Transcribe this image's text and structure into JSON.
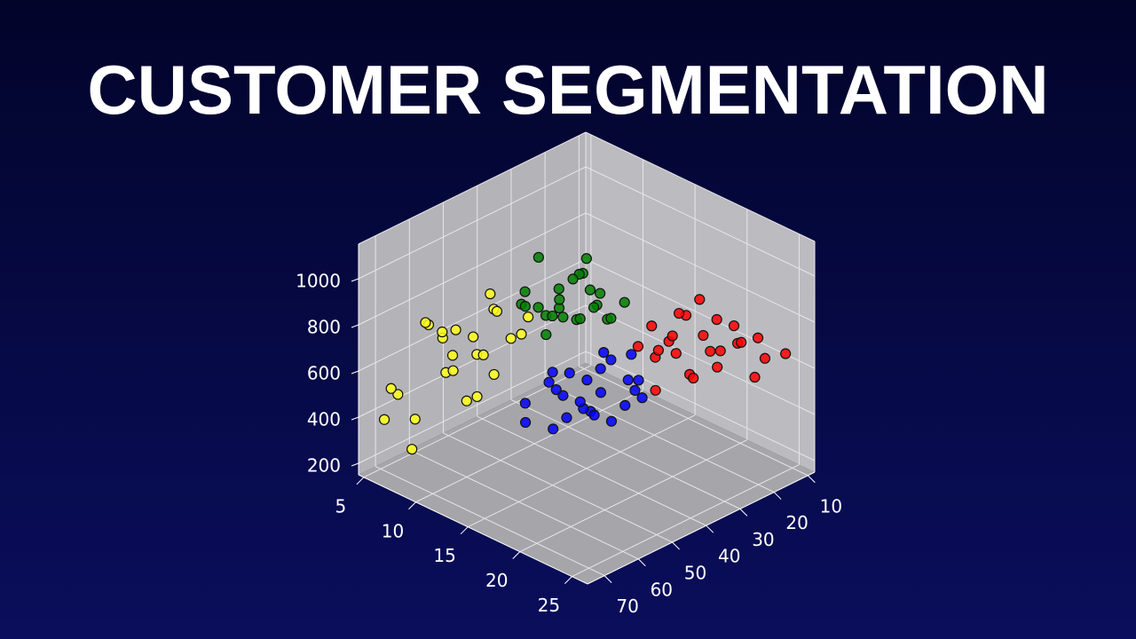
{
  "chart_data": {
    "type": "scatter3d",
    "title": "CUSTOMER SEGMENTATION",
    "xlim": [
      4.5,
      26.5
    ],
    "ylim": [
      8,
      75
    ],
    "zlim": [
      150,
      1150
    ],
    "xticks": [
      5,
      10,
      15,
      20,
      25
    ],
    "yticks": [
      10,
      20,
      30,
      40,
      50,
      60,
      70
    ],
    "zticks": [
      200,
      400,
      600,
      800,
      1000
    ],
    "grid": true,
    "series": [
      {
        "color": "#ffff1a",
        "x": [
          6,
          7,
          8,
          9,
          10,
          6,
          8,
          9,
          11,
          7,
          10,
          12,
          8,
          9,
          10,
          7,
          11,
          6,
          9,
          10,
          8,
          12,
          11,
          7,
          9
        ],
        "y": [
          68,
          62,
          58,
          55,
          52,
          70,
          60,
          64,
          50,
          66,
          57,
          50,
          66,
          52,
          60,
          58,
          55,
          72,
          48,
          64,
          70,
          48,
          60,
          54,
          50
        ],
        "z": [
          480,
          760,
          620,
          700,
          820,
          520,
          560,
          760,
          700,
          380,
          660,
          740,
          820,
          600,
          480,
          700,
          580,
          400,
          760,
          640,
          300,
          800,
          520,
          680,
          850
        ]
      },
      {
        "color": "#ff0000",
        "x": [
          18,
          19,
          20,
          21,
          22,
          23,
          24,
          19,
          20,
          21,
          22,
          18,
          20,
          23,
          25,
          24,
          21,
          19,
          22,
          20,
          21,
          23,
          18,
          22,
          24
        ],
        "y": [
          30,
          28,
          26,
          24,
          22,
          20,
          15,
          32,
          30,
          28,
          18,
          34,
          22,
          26,
          12,
          18,
          32,
          25,
          30,
          35,
          20,
          14,
          28,
          25,
          22
        ],
        "z": [
          760,
          700,
          820,
          740,
          680,
          720,
          640,
          660,
          760,
          600,
          760,
          700,
          860,
          660,
          660,
          580,
          720,
          800,
          620,
          560,
          780,
          700,
          640,
          700,
          760
        ]
      },
      {
        "color": "#008000",
        "x": [
          13,
          14,
          15,
          16,
          17,
          12,
          14,
          15,
          16,
          13,
          17,
          18,
          15,
          14,
          16,
          12,
          15,
          17,
          13,
          16,
          14,
          18,
          15,
          13,
          16
        ],
        "y": [
          42,
          45,
          48,
          40,
          44,
          50,
          38,
          52,
          46,
          36,
          40,
          42,
          44,
          55,
          50,
          45,
          36,
          48,
          52,
          42,
          47,
          38,
          40,
          48,
          55
        ],
        "z": [
          900,
          860,
          940,
          880,
          920,
          870,
          960,
          900,
          860,
          920,
          840,
          880,
          1000,
          940,
          900,
          820,
          880,
          900,
          960,
          960,
          840,
          920,
          1060,
          1080,
          860
        ]
      },
      {
        "color": "#0000ff",
        "x": [
          15,
          16,
          17,
          18,
          19,
          20,
          14,
          16,
          17,
          18,
          19,
          21,
          15,
          17,
          18,
          16,
          20,
          19,
          15,
          17,
          18,
          16,
          14,
          20,
          17
        ],
        "y": [
          45,
          50,
          42,
          48,
          40,
          44,
          55,
          38,
          52,
          45,
          50,
          42,
          58,
          46,
          36,
          44,
          48,
          38,
          50,
          56,
          42,
          52,
          48,
          40,
          48
        ],
        "z": [
          600,
          560,
          640,
          520,
          620,
          560,
          520,
          660,
          500,
          580,
          540,
          600,
          480,
          620,
          680,
          460,
          520,
          560,
          640,
          480,
          700,
          600,
          560,
          640,
          540
        ]
      }
    ]
  }
}
